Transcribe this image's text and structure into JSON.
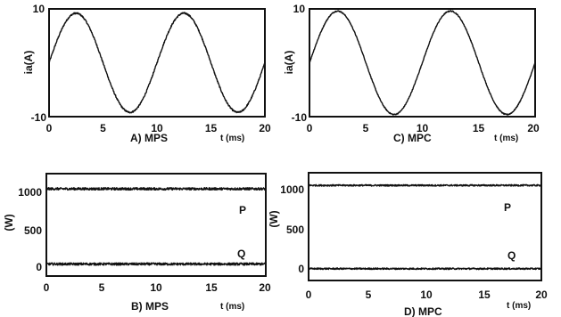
{
  "chart_data": [
    {
      "type": "line",
      "caption": "A) MPS",
      "xlabel": "t (ms)",
      "ylabel": "ia(A)",
      "xlim": [
        0,
        20
      ],
      "ylim": [
        -10,
        10
      ],
      "xticks": [
        0,
        5,
        10,
        15,
        20
      ],
      "yticks": [
        10,
        -10
      ],
      "series": [
        {
          "amplitude": 9.2,
          "period_ms": 10,
          "phase_deg": 0,
          "noise": 0.15,
          "x": [
            0,
            2.5,
            5,
            7.5,
            10,
            12.5,
            15,
            17.5,
            20
          ],
          "y": [
            0,
            9.2,
            0,
            -9.2,
            0,
            9.2,
            0,
            -9.2,
            0
          ]
        }
      ]
    },
    {
      "type": "line",
      "caption": "C) MPC",
      "xlabel": "t (ms)",
      "ylabel": "ia(A)",
      "xlim": [
        0,
        20
      ],
      "ylim": [
        -10,
        10
      ],
      "xticks": [
        0,
        5,
        10,
        15,
        20
      ],
      "yticks": [
        10,
        -10
      ],
      "series": [
        {
          "amplitude": 9.6,
          "period_ms": 10,
          "phase_deg": 0,
          "noise": 0.1,
          "x": [
            0,
            2.5,
            5,
            7.5,
            10,
            12.5,
            15,
            17.5,
            20
          ],
          "y": [
            0,
            9.6,
            0,
            -9.6,
            0,
            9.6,
            0,
            -9.6,
            0
          ]
        }
      ]
    },
    {
      "type": "line",
      "caption": "B) MPS",
      "xlabel": "t (ms)",
      "ylabel": "(W)",
      "xlim": [
        0,
        20
      ],
      "ylim": [
        -130,
        1150
      ],
      "xticks": [
        0,
        5,
        10,
        15,
        20
      ],
      "yticks": [
        1000,
        500,
        0
      ],
      "series": [
        {
          "name": "P",
          "mean": 960,
          "noise": 15,
          "x": [
            0,
            20
          ],
          "y": [
            960,
            960
          ]
        },
        {
          "name": "Q",
          "mean": 20,
          "noise": 15,
          "x": [
            0,
            20
          ],
          "y": [
            20,
            20
          ]
        }
      ]
    },
    {
      "type": "line",
      "caption": "D) MPC",
      "xlabel": "t (ms)",
      "ylabel": "(W)",
      "xlim": [
        0,
        20
      ],
      "ylim": [
        -130,
        1150
      ],
      "xticks": [
        0,
        5,
        10,
        15,
        20
      ],
      "yticks": [
        1000,
        500,
        0
      ],
      "series": [
        {
          "name": "P",
          "mean": 1000,
          "noise": 9,
          "x": [
            0,
            20
          ],
          "y": [
            1000,
            1000
          ]
        },
        {
          "name": "Q",
          "mean": 10,
          "noise": 9,
          "x": [
            0,
            20
          ],
          "y": [
            10,
            10
          ]
        }
      ]
    }
  ]
}
